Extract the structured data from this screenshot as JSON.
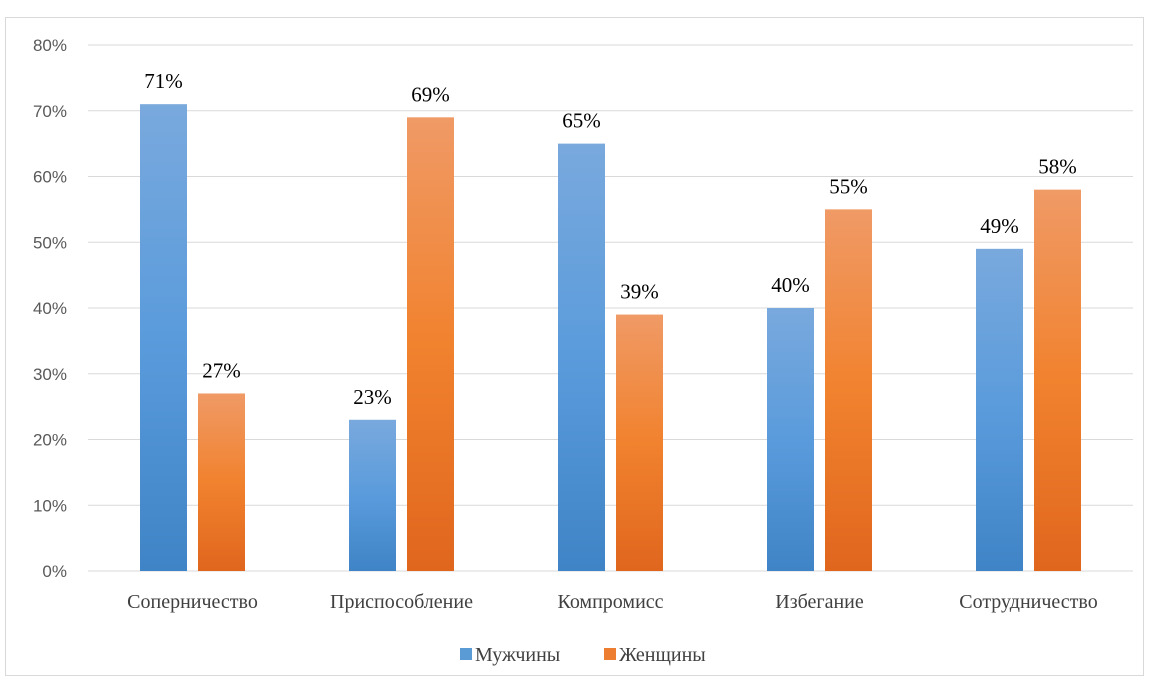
{
  "chart_data": {
    "type": "bar",
    "categories": [
      "Соперничество",
      "Приспособление",
      "Компромисс",
      "Избегание",
      "Сотрудничество"
    ],
    "series": [
      {
        "name": "Мужчины",
        "values": [
          71,
          23,
          65,
          40,
          49
        ],
        "color": "#5b9bd5"
      },
      {
        "name": "Женщины",
        "values": [
          27,
          69,
          39,
          55,
          58
        ],
        "color": "#ed7d31"
      }
    ],
    "value_suffix": "%",
    "y_tick_labels": [
      "0%",
      "10%",
      "20%",
      "30%",
      "40%",
      "50%",
      "60%",
      "70%",
      "80%"
    ],
    "ylim": [
      0,
      80
    ],
    "y_step": 10,
    "grid": true,
    "legend_position": "bottom",
    "title": "",
    "xlabel": "",
    "ylabel": ""
  }
}
